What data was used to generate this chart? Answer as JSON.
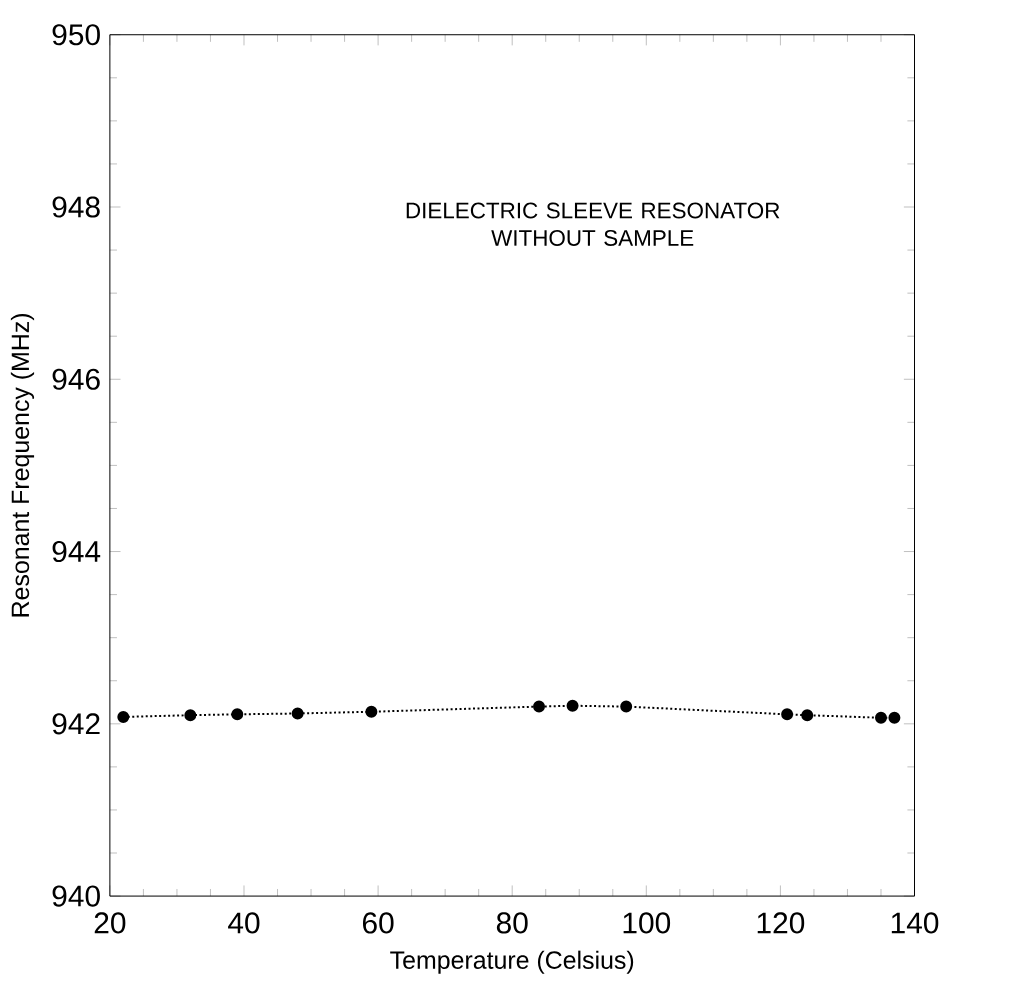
{
  "chart_data": {
    "type": "line",
    "xlabel": "Temperature (Celsius)",
    "ylabel": "Resonant Frequency (MHz)",
    "annotations": [
      "DIELECTRIC SLEEVE RESONATOR\nWITHOUT SAMPLE"
    ],
    "x": [
      22,
      32,
      39,
      48,
      59,
      84,
      89,
      97,
      121,
      124,
      135,
      137
    ],
    "series": [
      {
        "color": "#000000",
        "values": [
          942.08,
          942.1,
          942.11,
          942.12,
          942.14,
          942.2,
          942.21,
          942.2,
          942.11,
          942.1,
          942.07,
          942.07
        ]
      }
    ],
    "xlim": [
      20,
      140
    ],
    "ylim": [
      940,
      950
    ],
    "xticks": [
      20,
      40,
      60,
      80,
      100,
      120,
      140
    ],
    "yticks": [
      940,
      942,
      944,
      946,
      948,
      950
    ],
    "marker": "circle",
    "line_style": "dotted"
  }
}
